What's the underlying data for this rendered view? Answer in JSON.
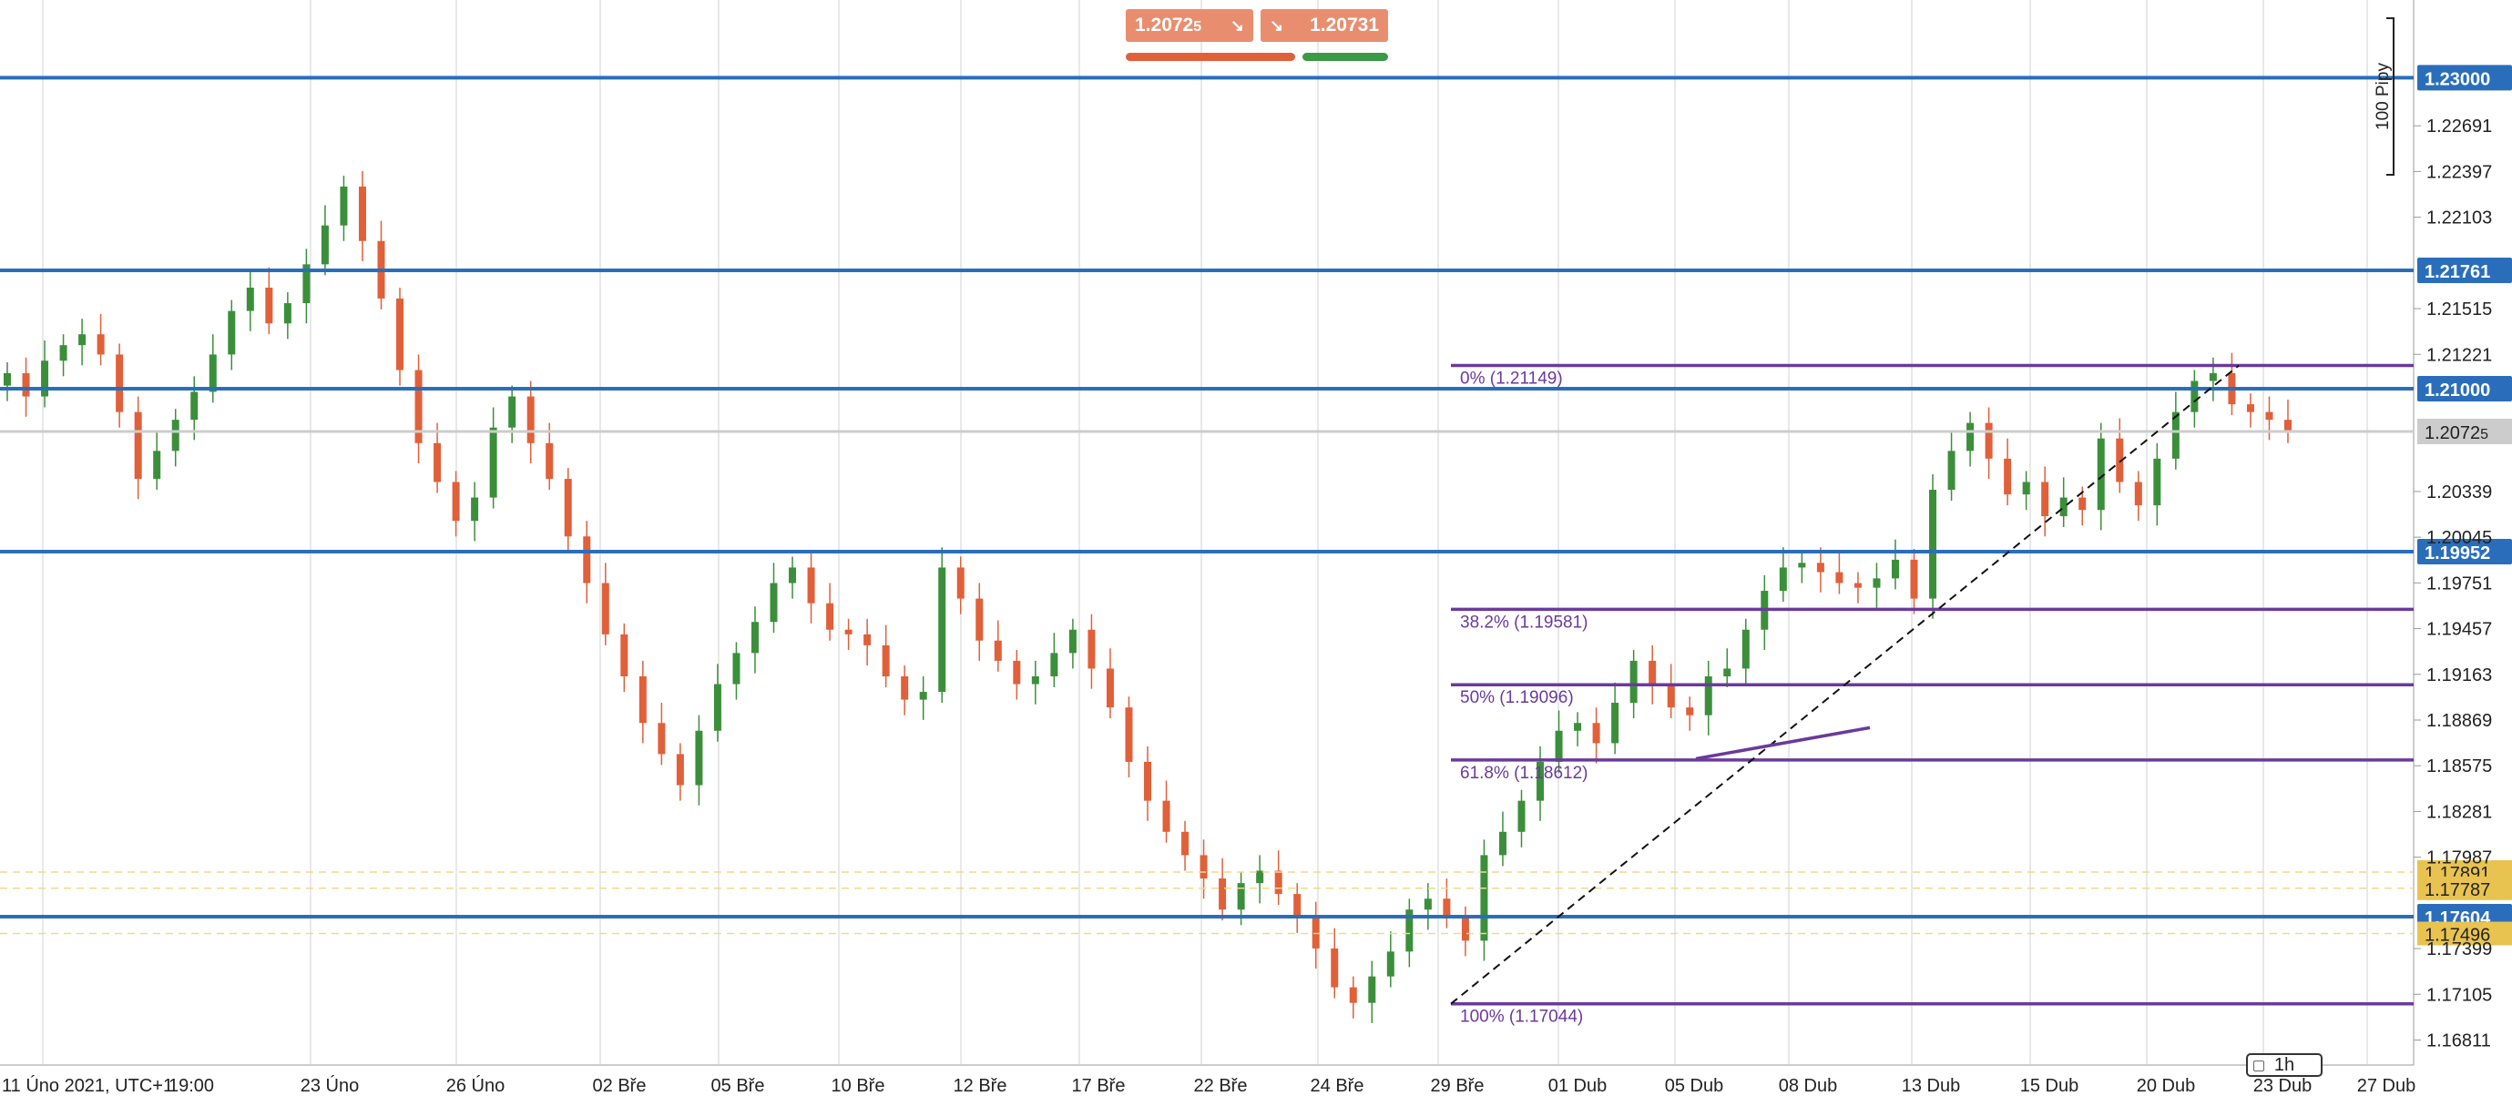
{
  "prices": {
    "sell": "1.2072",
    "sell_pip": "5",
    "buy": "1.2073",
    "buy_pip": "1"
  },
  "timeframe": "1h",
  "pip_ruler_label": "100 Pipy",
  "colors": {
    "bull": "#3b8f3b",
    "bear": "#e0603a",
    "hline": "#2a6ebb",
    "fib": "#6a3a9c",
    "grid": "#d0d0d0"
  },
  "chart_data": {
    "type": "candlestick",
    "x_labels": [
      "11 Úno 2021, UTC+1",
      "19:00",
      "23 Úno",
      "26 Úno",
      "02 Bře",
      "05 Bře",
      "10 Bře",
      "12 Bře",
      "17 Bře",
      "22 Bře",
      "24 Bře",
      "29 Bře",
      "01 Dub",
      "05 Dub",
      "08 Dub",
      "13 Dub",
      "15 Dub",
      "20 Dub",
      "23 Dub",
      "27 Dub"
    ],
    "y_ticks": [
      "1.22691",
      "1.22397",
      "1.22103",
      "1.21515",
      "1.21221",
      "1.20339",
      "1.20045",
      "1.19751",
      "1.19457",
      "1.19163",
      "1.18869",
      "1.18575",
      "1.18281",
      "1.17987",
      "1.17399",
      "1.17105",
      "1.16811"
    ],
    "ylim": [
      1.1665,
      1.235
    ],
    "horizontal_lines": [
      {
        "price": 1.23,
        "label": "1.23000"
      },
      {
        "price": 1.21761,
        "label": "1.21761"
      },
      {
        "price": 1.21,
        "label": "1.21000"
      },
      {
        "price": 1.19952,
        "label": "1.19952"
      },
      {
        "price": 1.17604,
        "label": "1.17604"
      }
    ],
    "current_price": {
      "price": 1.20725,
      "label": "1.2072",
      "pip": "5"
    },
    "orders": [
      {
        "price": 1.17891,
        "label": "1.17891"
      },
      {
        "price": 1.17787,
        "label": "1.17787"
      },
      {
        "price": 1.17496,
        "label": "1.17496"
      }
    ],
    "fibonacci": [
      {
        "price": 1.21149,
        "label": "0% (1.21149)"
      },
      {
        "price": 1.19581,
        "label": "38.2% (1.19581)"
      },
      {
        "price": 1.19096,
        "label": "50% (1.19096)"
      },
      {
        "price": 1.18612,
        "label": "61.8% (1.18612)"
      },
      {
        "price": 1.17044,
        "label": "100% (1.17044)"
      }
    ],
    "trend_line": {
      "from": 1.17044,
      "to": 1.21149
    },
    "small_line": {
      "from": 1.1862,
      "to": 1.1882
    },
    "close_path": [
      1.211,
      1.2095,
      1.2118,
      1.2128,
      1.2135,
      1.2122,
      1.2085,
      1.2042,
      1.206,
      1.208,
      1.2098,
      1.2122,
      1.215,
      1.2165,
      1.2142,
      1.2155,
      1.218,
      1.2205,
      1.223,
      1.2195,
      1.2158,
      1.2112,
      1.2065,
      1.204,
      1.2015,
      1.203,
      1.2075,
      1.2095,
      1.2065,
      1.2042,
      1.2005,
      1.1975,
      1.1942,
      1.1915,
      1.1885,
      1.1865,
      1.1845,
      1.188,
      1.191,
      1.193,
      1.195,
      1.1975,
      1.1985,
      1.1962,
      1.1945,
      1.1942,
      1.1935,
      1.1915,
      1.19,
      1.1905,
      1.1985,
      1.1965,
      1.1938,
      1.1925,
      1.191,
      1.1915,
      1.193,
      1.1945,
      1.192,
      1.1895,
      1.186,
      1.1835,
      1.1815,
      1.18,
      1.1785,
      1.1765,
      1.1782,
      1.179,
      1.1775,
      1.176,
      1.174,
      1.1715,
      1.1705,
      1.1722,
      1.1738,
      1.1765,
      1.1772,
      1.176,
      1.1745,
      1.18,
      1.1815,
      1.1835,
      1.186,
      1.188,
      1.1885,
      1.1872,
      1.1898,
      1.1925,
      1.191,
      1.1895,
      1.189,
      1.1915,
      1.192,
      1.1945,
      1.197,
      1.1985,
      1.1988,
      1.1982,
      1.1975,
      1.1972,
      1.1978,
      1.199,
      1.1965,
      1.2035,
      1.206,
      1.2078,
      1.2055,
      1.2032,
      1.204,
      1.2018,
      1.203,
      1.2022,
      1.2068,
      1.204,
      1.2025,
      1.2055,
      1.2085,
      1.2105,
      1.211,
      1.209,
      1.2085,
      1.208,
      1.2072
    ]
  }
}
